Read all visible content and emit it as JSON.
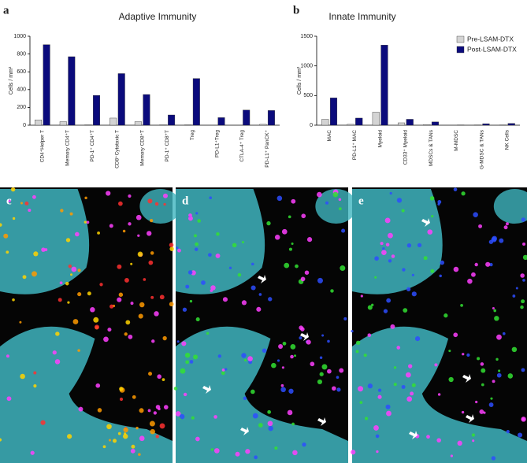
{
  "panel_labels": [
    "a",
    "b",
    "c",
    "d",
    "e"
  ],
  "chart_data": [
    {
      "type": "bar",
      "title": "Adaptive Immunity",
      "y_label": "Cells / mm²",
      "categories": [
        "CD4⁺Helper T",
        "Memory CD4⁺T",
        "PD-1⁺ CD4⁺T",
        "CD8⁺Cytotoxic T",
        "Memory CD8⁺T",
        "PD-1⁺ CD8⁺T",
        "Treg",
        "PD-L1⁺Treg",
        "CTLA-4⁺ Treg",
        "PD-L1⁺ PanCK⁺"
      ],
      "series": [
        {
          "name": "Pre-LSAM-DTX",
          "color": "#d4d4d4",
          "values": [
            60,
            40,
            5,
            80,
            40,
            5,
            5,
            0,
            0,
            10
          ]
        },
        {
          "name": "Post-LSAM-DTX",
          "color": "#0b0b7c",
          "values": [
            905,
            770,
            335,
            580,
            345,
            115,
            525,
            85,
            170,
            165
          ]
        }
      ],
      "ylim": [
        0,
        1000
      ],
      "yticks": [
        0,
        200,
        400,
        600,
        800,
        1000
      ]
    },
    {
      "type": "bar",
      "title": "Innate Immunity",
      "y_label": "Cells / mm²",
      "categories": [
        "MAC",
        "PD-L1⁺ MAC",
        "Myeloid",
        "CD33⁺ Myeloid",
        "MDSCs & TANs",
        "M-MDSC",
        "G-MDSC & TANs",
        "NK Cells"
      ],
      "series": [
        {
          "name": "Pre-LSAM-DTX",
          "color": "#d4d4d4",
          "values": [
            100,
            15,
            220,
            40,
            10,
            0,
            5,
            5
          ]
        },
        {
          "name": "Post-LSAM-DTX",
          "color": "#0b0b7c",
          "values": [
            460,
            120,
            1350,
            100,
            55,
            5,
            25,
            30
          ]
        }
      ],
      "ylim": [
        0,
        1500
      ],
      "yticks": [
        0,
        500,
        1000,
        1500
      ],
      "legend": "upper right"
    }
  ]
}
